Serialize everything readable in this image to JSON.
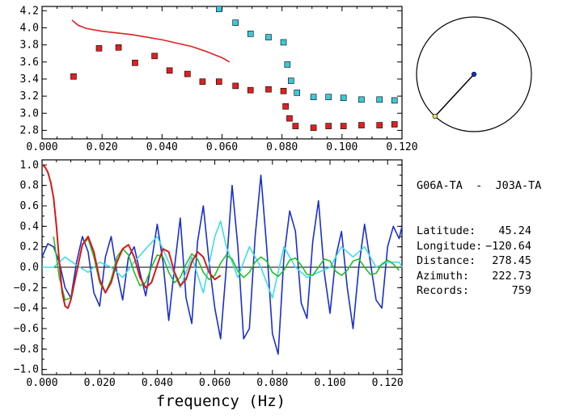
{
  "chart_data": [
    {
      "type": "scatter",
      "xlim": [
        0.0,
        0.12
      ],
      "ylim": [
        2.7,
        4.25
      ],
      "x_ticks": [
        "0.000",
        "0.020",
        "0.040",
        "0.060",
        "0.080",
        "0.100",
        "0.120"
      ],
      "y_ticks": [
        "2.8",
        "3.0",
        "3.2",
        "3.4",
        "3.6",
        "3.8",
        "4.0",
        "4.2"
      ],
      "colors": {
        "red": "#e02020",
        "cyan": "#3cc8d8",
        "marker_edge": "#000000"
      },
      "series": [
        {
          "marker": "square",
          "color": "#e02020",
          "x": [
            0.0105,
            0.019,
            0.0255,
            0.031,
            0.0375,
            0.0425,
            0.0485,
            0.0535,
            0.059,
            0.0645,
            0.0695,
            0.0755,
            0.0805,
            0.0812,
            0.0825,
            0.0845,
            0.0905,
            0.0955,
            0.1005,
            0.1065,
            0.1125,
            0.1175
          ],
          "y": [
            3.43,
            3.76,
            3.77,
            3.59,
            3.67,
            3.5,
            3.46,
            3.37,
            3.37,
            3.32,
            3.27,
            3.28,
            3.26,
            3.08,
            2.94,
            2.85,
            2.83,
            2.85,
            2.85,
            2.86,
            2.86,
            2.87
          ]
        },
        {
          "marker": "square",
          "color": "#3cc8d8",
          "x": [
            0.059,
            0.0645,
            0.0695,
            0.0755,
            0.0805,
            0.0818,
            0.083,
            0.085,
            0.0905,
            0.0955,
            0.1005,
            0.1065,
            0.1125,
            0.1175
          ],
          "y": [
            4.22,
            4.06,
            3.93,
            3.89,
            3.83,
            3.57,
            3.38,
            3.24,
            3.19,
            3.19,
            3.18,
            3.16,
            3.16,
            3.15
          ]
        },
        {
          "type": "line",
          "color": "#e02020",
          "x": [
            0.01,
            0.012,
            0.015,
            0.02,
            0.025,
            0.03,
            0.035,
            0.04,
            0.045,
            0.05,
            0.055,
            0.06,
            0.0625
          ],
          "y": [
            4.09,
            4.03,
            3.99,
            3.96,
            3.94,
            3.92,
            3.89,
            3.86,
            3.82,
            3.78,
            3.72,
            3.65,
            3.6
          ]
        }
      ]
    },
    {
      "type": "line",
      "xlabel": "frequency (Hz)",
      "xlim": [
        0.0,
        0.125
      ],
      "ylim": [
        -1.05,
        1.05
      ],
      "x_ticks": [
        "0.000",
        "0.020",
        "0.040",
        "0.060",
        "0.080",
        "0.100",
        "0.120"
      ],
      "y_ticks": [
        "1.0",
        "0.8",
        "0.6",
        "0.4",
        "0.2",
        "0.0",
        "−0.2",
        "−0.4",
        "−0.6",
        "−0.8",
        "−1.0"
      ],
      "series": [
        {
          "color": "#1a2fd0",
          "x": [
            0.0,
            0.002,
            0.004,
            0.006,
            0.008,
            0.01,
            0.012,
            0.014,
            0.016,
            0.018,
            0.02,
            0.022,
            0.024,
            0.026,
            0.028,
            0.03,
            0.032,
            0.034,
            0.036,
            0.038,
            0.04,
            0.042,
            0.044,
            0.046,
            0.048,
            0.05,
            0.052,
            0.054,
            0.056,
            0.058,
            0.06,
            0.062,
            0.064,
            0.066,
            0.068,
            0.07,
            0.072,
            0.074,
            0.076,
            0.078,
            0.08,
            0.082,
            0.084,
            0.086,
            0.088,
            0.09,
            0.092,
            0.094,
            0.096,
            0.098,
            0.1,
            0.102,
            0.104,
            0.106,
            0.108,
            0.11,
            0.112,
            0.114,
            0.116,
            0.118,
            0.12,
            0.122,
            0.124,
            0.125
          ],
          "y": [
            0.1,
            0.23,
            0.2,
            0.05,
            -0.2,
            -0.3,
            0.05,
            0.3,
            0.15,
            -0.25,
            -0.38,
            0.1,
            0.3,
            -0.05,
            -0.32,
            0.1,
            0.2,
            -0.05,
            -0.28,
            0.05,
            0.42,
            0.05,
            -0.52,
            0.0,
            0.48,
            -0.3,
            -0.55,
            0.25,
            0.6,
            0.05,
            -0.4,
            -0.7,
            0.0,
            0.8,
            0.2,
            -0.7,
            -0.6,
            0.3,
            0.9,
            0.2,
            -0.65,
            -0.85,
            0.1,
            0.55,
            0.35,
            -0.35,
            -0.5,
            0.25,
            0.65,
            -0.05,
            -0.45,
            0.1,
            0.35,
            -0.2,
            -0.6,
            0.0,
            0.42,
            0.05,
            -0.32,
            -0.4,
            0.2,
            0.4,
            0.28,
            0.4
          ]
        },
        {
          "color": "#40dce8",
          "x": [
            0.0,
            0.004,
            0.008,
            0.012,
            0.016,
            0.02,
            0.024,
            0.028,
            0.032,
            0.036,
            0.04,
            0.044,
            0.048,
            0.052,
            0.056,
            0.06,
            0.062,
            0.064,
            0.068,
            0.072,
            0.076,
            0.08,
            0.084,
            0.088,
            0.092,
            0.096,
            0.1,
            0.104,
            0.108,
            0.112,
            0.116,
            0.12,
            0.124,
            0.125
          ],
          "y": [
            0.0,
            0.0,
            0.1,
            0.02,
            -0.05,
            0.05,
            0.0,
            -0.1,
            0.05,
            0.18,
            0.3,
            0.05,
            -0.2,
            0.1,
            -0.25,
            0.3,
            0.45,
            0.2,
            -0.1,
            0.2,
            0.0,
            -0.3,
            0.2,
            0.0,
            -0.1,
            -0.05,
            0.0,
            0.2,
            0.1,
            0.2,
            0.0,
            0.05,
            0.05,
            0.0
          ]
        },
        {
          "color": "#22c022",
          "x": [
            0.004,
            0.006,
            0.008,
            0.01,
            0.012,
            0.014,
            0.016,
            0.018,
            0.02,
            0.022,
            0.024,
            0.026,
            0.028,
            0.03,
            0.032,
            0.034,
            0.036,
            0.038,
            0.04,
            0.042,
            0.044,
            0.046,
            0.048,
            0.05,
            0.052,
            0.054,
            0.056,
            0.058,
            0.06,
            0.062,
            0.064,
            0.066,
            0.068,
            0.07,
            0.072,
            0.074,
            0.076,
            0.078,
            0.08,
            0.082,
            0.084,
            0.086,
            0.088,
            0.09,
            0.092,
            0.094,
            0.096,
            0.098,
            0.1,
            0.102,
            0.104,
            0.106,
            0.108,
            0.11,
            0.112,
            0.114,
            0.116,
            0.118,
            0.12,
            0.122,
            0.124
          ],
          "y": [
            0.3,
            -0.1,
            -0.32,
            -0.3,
            -0.05,
            0.22,
            0.28,
            0.1,
            -0.15,
            -0.25,
            -0.12,
            0.1,
            0.18,
            0.12,
            -0.05,
            -0.18,
            -0.15,
            0.0,
            0.12,
            0.1,
            -0.05,
            -0.15,
            -0.1,
            0.03,
            0.13,
            0.08,
            -0.05,
            -0.12,
            -0.08,
            0.04,
            0.12,
            0.08,
            -0.04,
            -0.1,
            -0.05,
            0.05,
            0.1,
            0.06,
            -0.05,
            -0.09,
            -0.03,
            0.07,
            0.09,
            0.02,
            -0.07,
            -0.08,
            0.0,
            0.08,
            0.06,
            -0.04,
            -0.08,
            -0.03,
            0.06,
            0.08,
            0.0,
            -0.07,
            -0.06,
            0.03,
            0.07,
            0.03,
            -0.03
          ]
        },
        {
          "color": "#d81818",
          "x": [
            0.0,
            0.001,
            0.002,
            0.003,
            0.004,
            0.005,
            0.006,
            0.007,
            0.008,
            0.009,
            0.01,
            0.012,
            0.014,
            0.016,
            0.018,
            0.02,
            0.022,
            0.024,
            0.026,
            0.028,
            0.03,
            0.032,
            0.034,
            0.036,
            0.038,
            0.04,
            0.042,
            0.044,
            0.046,
            0.048,
            0.05,
            0.052,
            0.054,
            0.056,
            0.058,
            0.06,
            0.062
          ],
          "y": [
            1.0,
            0.98,
            0.93,
            0.83,
            0.68,
            0.4,
            0.05,
            -0.25,
            -0.38,
            -0.4,
            -0.32,
            -0.05,
            0.22,
            0.3,
            0.15,
            -0.12,
            -0.25,
            -0.15,
            0.05,
            0.18,
            0.22,
            0.1,
            -0.1,
            -0.2,
            -0.15,
            0.02,
            0.18,
            0.15,
            -0.05,
            -0.18,
            -0.12,
            0.05,
            0.15,
            0.1,
            -0.05,
            -0.12,
            -0.08
          ]
        }
      ]
    }
  ],
  "station_info": {
    "title": "G06A-TA  -  J03A-TA",
    "rows": [
      {
        "label": "Latitude:",
        "value": "45.24"
      },
      {
        "label": "Longitude:",
        "value": "−120.64"
      },
      {
        "label": "Distance:",
        "value": "278.45"
      },
      {
        "label": "Azimuth:",
        "value": "222.73"
      },
      {
        "label": "Records:",
        "value": "759"
      }
    ]
  },
  "azimuth_plot": {
    "azimuth_deg": 222.73,
    "center_color": "#1a2fd0",
    "end_color": "#f0e060"
  }
}
